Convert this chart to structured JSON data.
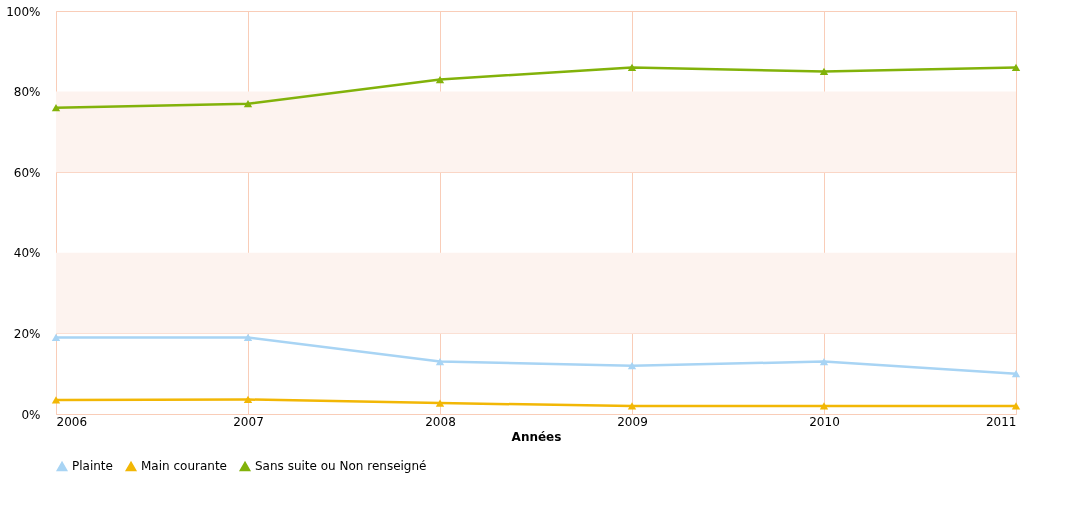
{
  "chart_data": {
    "type": "line",
    "xlabel": "Années",
    "x": [
      2006,
      2007,
      2008,
      2009,
      2010,
      2011
    ],
    "series": [
      {
        "name": "Plainte",
        "color": "#a8d4f4",
        "values": [
          19,
          19,
          13,
          12,
          13,
          10
        ]
      },
      {
        "name": "Main courante",
        "color": "#f2b705",
        "values": [
          3.5,
          3.6,
          2.7,
          2,
          2,
          2
        ]
      },
      {
        "name": "Sans suite ou Non renseigné",
        "color": "#82b20a",
        "values": [
          76,
          77,
          83,
          86,
          85,
          86
        ]
      }
    ],
    "xlim": [
      2006,
      2011
    ],
    "xticks": [
      2006,
      2007,
      2008,
      2009,
      2010,
      2011
    ],
    "ylim": [
      0,
      100
    ],
    "yticks": [
      {
        "value": 0,
        "label": "0%"
      },
      {
        "value": 20,
        "label": "20%"
      },
      {
        "value": 40,
        "label": "40%"
      },
      {
        "value": 60,
        "label": "60%"
      },
      {
        "value": 80,
        "label": "80%"
      },
      {
        "value": 100,
        "label": "100%"
      }
    ],
    "bands": [
      {
        "axis": "y",
        "from": 20,
        "to": 40,
        "color": "#fdf3ef"
      },
      {
        "axis": "y",
        "from": 60,
        "to": 80,
        "color": "#fdf3ef"
      }
    ],
    "grid": true,
    "legend": "bottom",
    "marker": "triangle",
    "line_style": "solid"
  }
}
